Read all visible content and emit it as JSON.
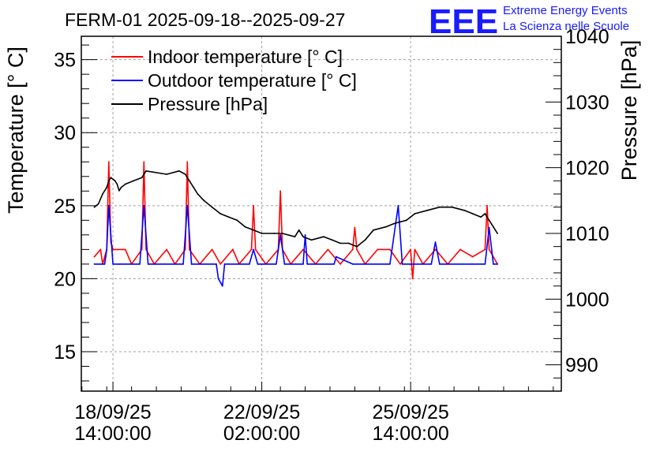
{
  "chart_data": {
    "type": "line",
    "title": "FERM-01 2025-09-18--2025-09-27",
    "logo": {
      "mark": "EEE",
      "line1": "Extreme Energy Events",
      "line2": "La Scienza nelle Scuole"
    },
    "left_axis": {
      "label": "Temperature [° C]",
      "ylim": [
        12.3,
        36.6
      ],
      "ticks": [
        15,
        20,
        25,
        30,
        35
      ],
      "tick_labels": [
        "15",
        "20",
        "25",
        "30",
        "35"
      ]
    },
    "right_axis": {
      "label": "Pressure [hPa]",
      "ylim": [
        986,
        1040
      ],
      "ticks": [
        990,
        1000,
        1010,
        1020,
        1030,
        1040
      ],
      "tick_labels": [
        "990",
        "1000",
        "1010",
        "1020",
        "1030",
        "1040"
      ]
    },
    "x_axis": {
      "units": "hours since 18/09/25 00:00",
      "xlim": [
        -1.3,
        230.9
      ],
      "ticks": [
        14,
        86,
        158
      ],
      "tick_labels": [
        [
          "18/09/25",
          "14:00:00"
        ],
        [
          "22/09/25",
          "02:00:00"
        ],
        [
          "25/09/25",
          "14:00:00"
        ]
      ]
    },
    "grid": true,
    "legend": {
      "position": "top-left",
      "entries": [
        {
          "label": "Indoor temperature [° C]",
          "color": "#ff0000"
        },
        {
          "label": "Outdoor temperature [° C]",
          "color": "#0000ff"
        },
        {
          "label": "Pressure [hPa]",
          "color": "#000000"
        }
      ]
    },
    "series": [
      {
        "name": "Indoor temperature [° C]",
        "axis": "left",
        "color": "#ff0000",
        "points": [
          [
            5.0,
            21.5
          ],
          [
            8.0,
            22.0
          ],
          [
            9.0,
            21.0
          ],
          [
            11.0,
            22.0
          ],
          [
            12.0,
            28.0
          ],
          [
            13.0,
            22.5
          ],
          [
            14.0,
            22.0
          ],
          [
            20.0,
            22.0
          ],
          [
            23.0,
            21.0
          ],
          [
            28.0,
            22.0
          ],
          [
            29.0,
            28.0
          ],
          [
            30.0,
            22.0
          ],
          [
            34.0,
            21.0
          ],
          [
            40.0,
            22.0
          ],
          [
            44.0,
            21.0
          ],
          [
            49.0,
            22.0
          ],
          [
            50.0,
            28.0
          ],
          [
            51.0,
            22.0
          ],
          [
            56.0,
            21.0
          ],
          [
            62.0,
            22.0
          ],
          [
            66.0,
            21.0
          ],
          [
            72.0,
            22.0
          ],
          [
            75.0,
            21.0
          ],
          [
            81.0,
            22.0
          ],
          [
            82.0,
            25.0
          ],
          [
            83.0,
            22.0
          ],
          [
            88.0,
            21.0
          ],
          [
            94.0,
            22.0
          ],
          [
            95.0,
            26.0
          ],
          [
            96.0,
            22.0
          ],
          [
            100.0,
            21.0
          ],
          [
            106.0,
            22.0
          ],
          [
            112.0,
            21.0
          ],
          [
            118.0,
            22.0
          ],
          [
            124.0,
            21.0
          ],
          [
            130.0,
            22.0
          ],
          [
            131.0,
            23.5
          ],
          [
            132.0,
            22.0
          ],
          [
            136.0,
            21.0
          ],
          [
            142.0,
            22.0
          ],
          [
            148.0,
            22.0
          ],
          [
            153.0,
            21.0
          ],
          [
            158.0,
            22.0
          ],
          [
            159.0,
            20.0
          ],
          [
            160.0,
            22.0
          ],
          [
            164.0,
            21.0
          ],
          [
            170.0,
            22.0
          ],
          [
            176.0,
            21.0
          ],
          [
            182.0,
            22.0
          ],
          [
            188.0,
            21.5
          ],
          [
            194.0,
            22.0
          ],
          [
            195.0,
            25.0
          ],
          [
            196.0,
            22.0
          ],
          [
            200.0,
            21.0
          ]
        ]
      },
      {
        "name": "Outdoor temperature [° C]",
        "axis": "left",
        "color": "#0000ff",
        "points": [
          [
            5.0,
            21.0
          ],
          [
            10.0,
            21.0
          ],
          [
            11.0,
            22.0
          ],
          [
            12.0,
            25.0
          ],
          [
            13.0,
            23.0
          ],
          [
            14.0,
            21.0
          ],
          [
            17.0,
            21.0
          ],
          [
            27.0,
            21.0
          ],
          [
            29.0,
            25.0
          ],
          [
            31.0,
            21.0
          ],
          [
            48.0,
            21.0
          ],
          [
            50.0,
            25.0
          ],
          [
            52.0,
            21.0
          ],
          [
            64.0,
            21.0
          ],
          [
            65.0,
            20.0
          ],
          [
            67.0,
            19.5
          ],
          [
            68.0,
            21.0
          ],
          [
            80.0,
            21.0
          ],
          [
            82.0,
            22.0
          ],
          [
            84.0,
            21.0
          ],
          [
            93.0,
            21.0
          ],
          [
            95.0,
            23.0
          ],
          [
            97.0,
            21.0
          ],
          [
            106.0,
            21.0
          ],
          [
            107.0,
            23.0
          ],
          [
            108.0,
            21.0
          ],
          [
            121.0,
            21.0
          ],
          [
            122.0,
            21.5
          ],
          [
            130.0,
            21.0
          ],
          [
            148.0,
            21.0
          ],
          [
            152.0,
            25.0
          ],
          [
            154.0,
            21.0
          ],
          [
            168.0,
            21.0
          ],
          [
            170.0,
            22.5
          ],
          [
            172.0,
            21.0
          ],
          [
            194.0,
            21.0
          ],
          [
            196.0,
            23.5
          ],
          [
            198.0,
            21.0
          ],
          [
            200.0,
            21.0
          ]
        ]
      },
      {
        "name": "Pressure [hPa]",
        "axis": "right",
        "color": "#000000",
        "points": [
          [
            5.0,
            1014.0
          ],
          [
            7.0,
            1014.5
          ],
          [
            9.0,
            1016.0
          ],
          [
            11.0,
            1017.0
          ],
          [
            12.0,
            1018.0
          ],
          [
            13.0,
            1018.5
          ],
          [
            15.0,
            1018.0
          ],
          [
            16.0,
            1017.5
          ],
          [
            17.0,
            1016.5
          ],
          [
            18.0,
            1017.0
          ],
          [
            20.0,
            1017.5
          ],
          [
            24.0,
            1018.0
          ],
          [
            28.0,
            1018.5
          ],
          [
            30.0,
            1019.5
          ],
          [
            40.0,
            1019.0
          ],
          [
            46.0,
            1019.5
          ],
          [
            49.0,
            1019.0
          ],
          [
            51.0,
            1018.0
          ],
          [
            53.0,
            1017.0
          ],
          [
            55.0,
            1016.0
          ],
          [
            58.0,
            1015.0
          ],
          [
            62.0,
            1014.0
          ],
          [
            66.0,
            1013.0
          ],
          [
            70.0,
            1012.5
          ],
          [
            74.0,
            1012.0
          ],
          [
            78.0,
            1011.0
          ],
          [
            82.0,
            1010.5
          ],
          [
            86.0,
            1010.0
          ],
          [
            92.0,
            1010.0
          ],
          [
            96.0,
            1010.0
          ],
          [
            102.0,
            1009.5
          ],
          [
            104.0,
            1010.5
          ],
          [
            106.0,
            1009.5
          ],
          [
            110.0,
            1009.0
          ],
          [
            116.0,
            1009.5
          ],
          [
            120.0,
            1009.0
          ],
          [
            124.0,
            1008.5
          ],
          [
            128.0,
            1008.5
          ],
          [
            132.0,
            1008.0
          ],
          [
            136.0,
            1009.0
          ],
          [
            140.0,
            1010.5
          ],
          [
            146.0,
            1011.0
          ],
          [
            150.0,
            1011.5
          ],
          [
            156.0,
            1012.0
          ],
          [
            160.0,
            1013.0
          ],
          [
            166.0,
            1013.5
          ],
          [
            172.0,
            1014.0
          ],
          [
            178.0,
            1014.0
          ],
          [
            184.0,
            1013.5
          ],
          [
            188.0,
            1013.0
          ],
          [
            192.0,
            1012.5
          ],
          [
            194.0,
            1013.0
          ],
          [
            196.0,
            1012.0
          ],
          [
            198.0,
            1011.0
          ],
          [
            200.0,
            1010.0
          ]
        ]
      }
    ]
  }
}
